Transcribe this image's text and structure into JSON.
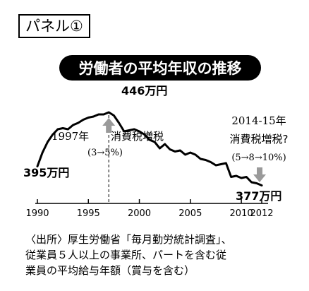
{
  "panel_label": "パネル①",
  "chart_data": {
    "type": "line",
    "title": "労働者の平均年収の推移",
    "xlabel": "",
    "ylabel": "",
    "unit": "万円",
    "xlim": [
      1990,
      2012
    ],
    "ylim": [
      360,
      460
    ],
    "x_ticks": [
      "1990",
      "1995",
      "2000",
      "2005",
      "2010",
      "2012"
    ],
    "x": [
      1990.0,
      1990.5,
      1991.0,
      1991.5,
      1992.0,
      1992.5,
      1993.0,
      1993.5,
      1994.0,
      1994.5,
      1995.0,
      1995.5,
      1996.0,
      1996.5,
      1997.0,
      1997.5,
      1998.0,
      1998.5,
      1999.0,
      1999.5,
      2000.0,
      2000.5,
      2001.0,
      2001.5,
      2002.0,
      2002.5,
      2003.0,
      2003.5,
      2004.0,
      2004.5,
      2005.0,
      2005.5,
      2006.0,
      2006.5,
      2007.0,
      2007.5,
      2008.0,
      2008.5,
      2009.0,
      2009.5,
      2010.0,
      2010.5,
      2011.0,
      2011.5,
      2012.0
    ],
    "values": [
      395,
      408,
      418,
      425,
      430,
      431,
      430,
      434,
      436,
      439,
      441,
      442,
      444,
      444,
      446,
      443,
      436,
      428,
      429,
      430,
      428,
      425,
      420,
      418,
      412,
      416,
      411,
      409,
      410,
      406,
      408,
      406,
      402,
      401,
      399,
      396,
      397,
      398,
      385,
      386,
      384,
      385,
      380,
      379,
      377
    ],
    "start_label": "395万円",
    "peak_label": "446万円",
    "end_label": "377万円",
    "annotations": [
      {
        "id": "y1997",
        "lines": [
          "1997年",
          "消費税増税",
          "(3→5%)"
        ]
      },
      {
        "id": "y2014",
        "lines": [
          "2014-15年",
          "消費税増税?",
          "(5→8→10%)"
        ]
      }
    ],
    "colors": {
      "line": "#000000",
      "arrow": "#9a9a9a",
      "title_bg": "#000000",
      "title_text": "#ffffff"
    }
  },
  "source_lines": [
    "〈出所〉厚生労働省「毎月勤労統計調査」、",
    "従業員５人以上の事業所、パートを含む従",
    "業員の平均給与年額（賞与を含む）"
  ]
}
